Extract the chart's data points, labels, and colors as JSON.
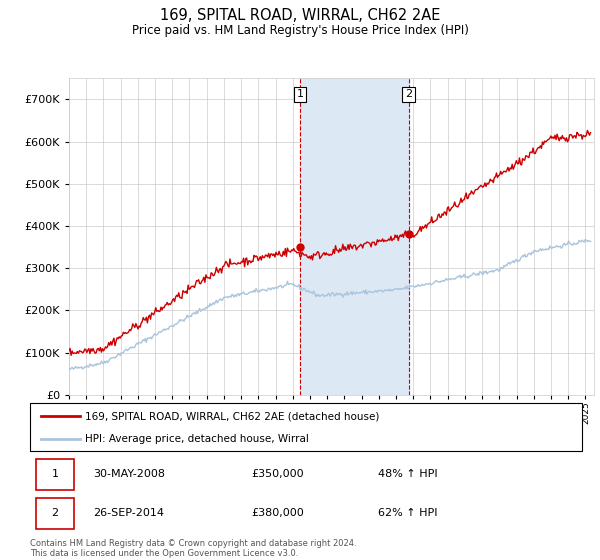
{
  "title": "169, SPITAL ROAD, WIRRAL, CH62 2AE",
  "subtitle": "Price paid vs. HM Land Registry's House Price Index (HPI)",
  "ylim": [
    0,
    750000
  ],
  "yticks": [
    0,
    100000,
    200000,
    300000,
    400000,
    500000,
    600000,
    700000
  ],
  "ytick_labels": [
    "£0",
    "£100K",
    "£200K",
    "£300K",
    "£400K",
    "£500K",
    "£600K",
    "£700K"
  ],
  "hpi_color": "#aac4dd",
  "price_color": "#cc0000",
  "sale1_year": 2008.42,
  "sale1_price": 350000,
  "sale1_label": "1",
  "sale2_year": 2014.73,
  "sale2_price": 380000,
  "sale2_label": "2",
  "shade_color": "#dce9f5",
  "vline_color": "#cc0000",
  "legend_line1": "169, SPITAL ROAD, WIRRAL, CH62 2AE (detached house)",
  "legend_line2": "HPI: Average price, detached house, Wirral",
  "table_row1": [
    "1",
    "30-MAY-2008",
    "£350,000",
    "48% ↑ HPI"
  ],
  "table_row2": [
    "2",
    "26-SEP-2014",
    "£380,000",
    "62% ↑ HPI"
  ],
  "footnote": "Contains HM Land Registry data © Crown copyright and database right 2024.\nThis data is licensed under the Open Government Licence v3.0.",
  "background_color": "#ffffff",
  "xlim": [
    1995,
    2025.5
  ],
  "xstart": 1995,
  "xend": 2025
}
